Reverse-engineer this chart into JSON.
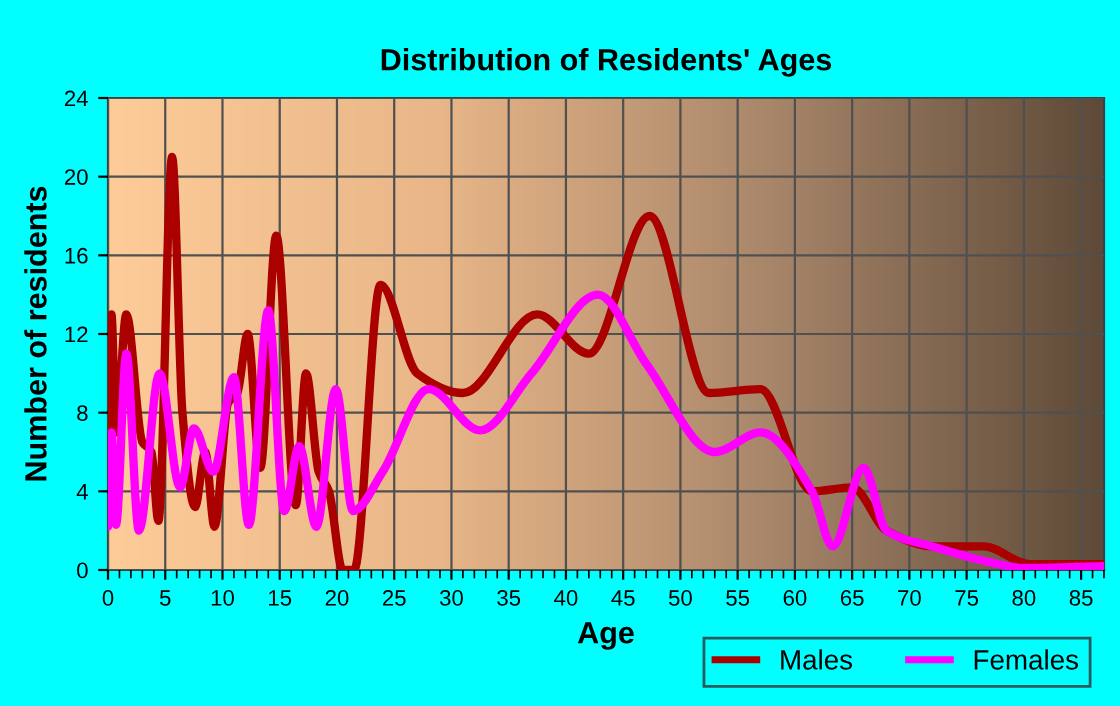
{
  "chart_data": {
    "type": "line",
    "title": "Distribution of Residents' Ages",
    "xlabel": "Age",
    "ylabel": "Number of residents",
    "xlim": [
      0,
      87
    ],
    "xticks": [
      0,
      5,
      10,
      15,
      20,
      25,
      30,
      35,
      40,
      45,
      50,
      55,
      60,
      65,
      70,
      75,
      80,
      85
    ],
    "ylim": [
      0,
      24
    ],
    "yticks": [
      0,
      4,
      8,
      12,
      16,
      20,
      24
    ],
    "grid": true,
    "legend": "bottom right",
    "marker": "none",
    "line_style": "solid",
    "series": [
      {
        "name": "Males",
        "color": "#aa0000",
        "x": [
          0,
          0.3,
          0.7,
          1.6,
          3,
          3.8,
          4.4,
          5.6,
          6.5,
          7.6,
          8.5,
          9.3,
          10.5,
          11.3,
          12.2,
          13.3,
          14.7,
          16.4,
          17.3,
          18.4,
          19.3,
          20.5,
          21.5,
          23.8,
          27,
          31,
          37.5,
          42,
          47.3,
          52.5,
          57,
          61.5,
          65,
          68,
          72,
          76.5,
          80.5,
          87
        ],
        "values": [
          7,
          13,
          7,
          13,
          6.5,
          6,
          2.5,
          21,
          8,
          3.2,
          6,
          2.2,
          8.5,
          9,
          12,
          5.2,
          17,
          3.3,
          10,
          5,
          4,
          0,
          0,
          14.5,
          10,
          9,
          13,
          11,
          18,
          9,
          9.2,
          4,
          4.2,
          2,
          1.2,
          1.2,
          0.3,
          0.3
        ]
      },
      {
        "name": "Females",
        "color": "#ff00ff",
        "x": [
          0,
          0.3,
          0.7,
          1.6,
          2.7,
          4.5,
          6.3,
          7.5,
          9.2,
          11,
          12.3,
          14,
          15.4,
          16.7,
          18.2,
          19.9,
          21.4,
          24,
          28,
          32.5,
          37,
          42.8,
          47,
          53,
          57,
          61.5,
          63.3,
          66,
          68,
          72,
          77,
          80,
          87
        ],
        "values": [
          2.2,
          7,
          2.3,
          11,
          2,
          10,
          4.2,
          7.2,
          5,
          9.8,
          2.3,
          13.2,
          3,
          6.3,
          2.2,
          9.2,
          3,
          5,
          9.2,
          7.1,
          10,
          14,
          10.5,
          6,
          7,
          4,
          1.2,
          5.2,
          2,
          1.2,
          0.4,
          0.1,
          0.2
        ]
      }
    ]
  }
}
